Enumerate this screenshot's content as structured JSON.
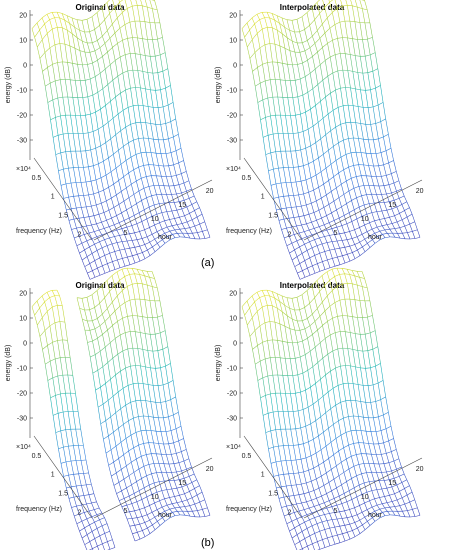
{
  "chart_data": [
    {
      "type": "surface",
      "title": "Original data",
      "zlabel": "energy (dB)",
      "xlabel": "frequency (Hz)",
      "ylabel": "hour",
      "x_multiplier": "×10⁴",
      "x_ticks": [
        "0.5",
        "1",
        "1.5",
        "2"
      ],
      "y_ticks": [
        "5",
        "10",
        "15",
        "20"
      ],
      "z_ticks": [
        "20",
        "10",
        "0",
        "-10",
        "-20",
        "-30"
      ],
      "zlim": [
        -38,
        22
      ],
      "gap": false
    },
    {
      "type": "surface",
      "title": "Interpolated data",
      "zlabel": "energy (dB)",
      "xlabel": "frequency (Hz)",
      "ylabel": "hour",
      "x_multiplier": "×10⁴",
      "x_ticks": [
        "0.5",
        "1",
        "1.5",
        "2"
      ],
      "y_ticks": [
        "5",
        "10",
        "15",
        "20"
      ],
      "z_ticks": [
        "20",
        "10",
        "0",
        "-10",
        "-20",
        "-30"
      ],
      "zlim": [
        -38,
        22
      ],
      "gap": false
    },
    {
      "type": "surface",
      "title": "Original data",
      "zlabel": "energy (dB)",
      "xlabel": "frequency (Hz)",
      "ylabel": "hour",
      "x_multiplier": "×10⁴",
      "x_ticks": [
        "0.5",
        "1",
        "1.5",
        "2"
      ],
      "y_ticks": [
        "5",
        "10",
        "15",
        "20"
      ],
      "z_ticks": [
        "20",
        "10",
        "0",
        "-10",
        "-20",
        "-30"
      ],
      "zlim": [
        -38,
        22
      ],
      "gap": true
    },
    {
      "type": "surface",
      "title": "Interpolated data",
      "zlabel": "energy (dB)",
      "xlabel": "frequency (Hz)",
      "ylabel": "hour",
      "x_multiplier": "×10⁴",
      "x_ticks": [
        "0.5",
        "1",
        "1.5",
        "2"
      ],
      "y_ticks": [
        "5",
        "10",
        "15",
        "20"
      ],
      "z_ticks": [
        "20",
        "10",
        "0",
        "-10",
        "-20",
        "-30"
      ],
      "zlim": [
        -38,
        22
      ],
      "gap": false
    }
  ],
  "captions": [
    "(a)",
    "(b)"
  ]
}
